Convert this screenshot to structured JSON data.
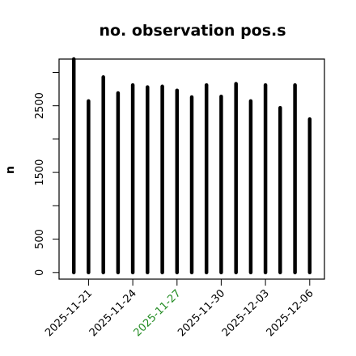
{
  "chart_data": {
    "type": "bar",
    "title": "no. observation pos.s",
    "xlabel": "",
    "ylabel": "n",
    "ylim": [
      -100,
      3200
    ],
    "yticks": [
      0,
      500,
      1500,
      2500
    ],
    "y_minor_ticks": [
      0,
      500,
      1000,
      1500,
      2000,
      2500,
      3000
    ],
    "x": [
      "2025-11-20",
      "2025-11-21",
      "2025-11-22",
      "2025-11-23",
      "2025-11-24",
      "2025-11-25",
      "2025-11-26",
      "2025-11-27",
      "2025-11-28",
      "2025-11-29",
      "2025-11-30",
      "2025-12-01",
      "2025-12-02",
      "2025-12-03",
      "2025-12-04",
      "2025-12-05",
      "2025-12-06"
    ],
    "values": [
      3200,
      2570,
      2930,
      2690,
      2810,
      2780,
      2790,
      2730,
      2630,
      2810,
      2640,
      2830,
      2570,
      2810,
      2470,
      2810,
      2300
    ],
    "xlim": [
      "2025-11-19",
      "2025-12-07"
    ],
    "xticks": [
      "2025-11-21",
      "2025-11-24",
      "2025-11-27",
      "2025-11-30",
      "2025-12-03",
      "2025-12-06"
    ],
    "highlight_tick": "2025-11-27",
    "highlight_color": "#228b22",
    "bar_color": "#000000",
    "axis_color": "#000000",
    "grid": false,
    "legend": "none"
  }
}
